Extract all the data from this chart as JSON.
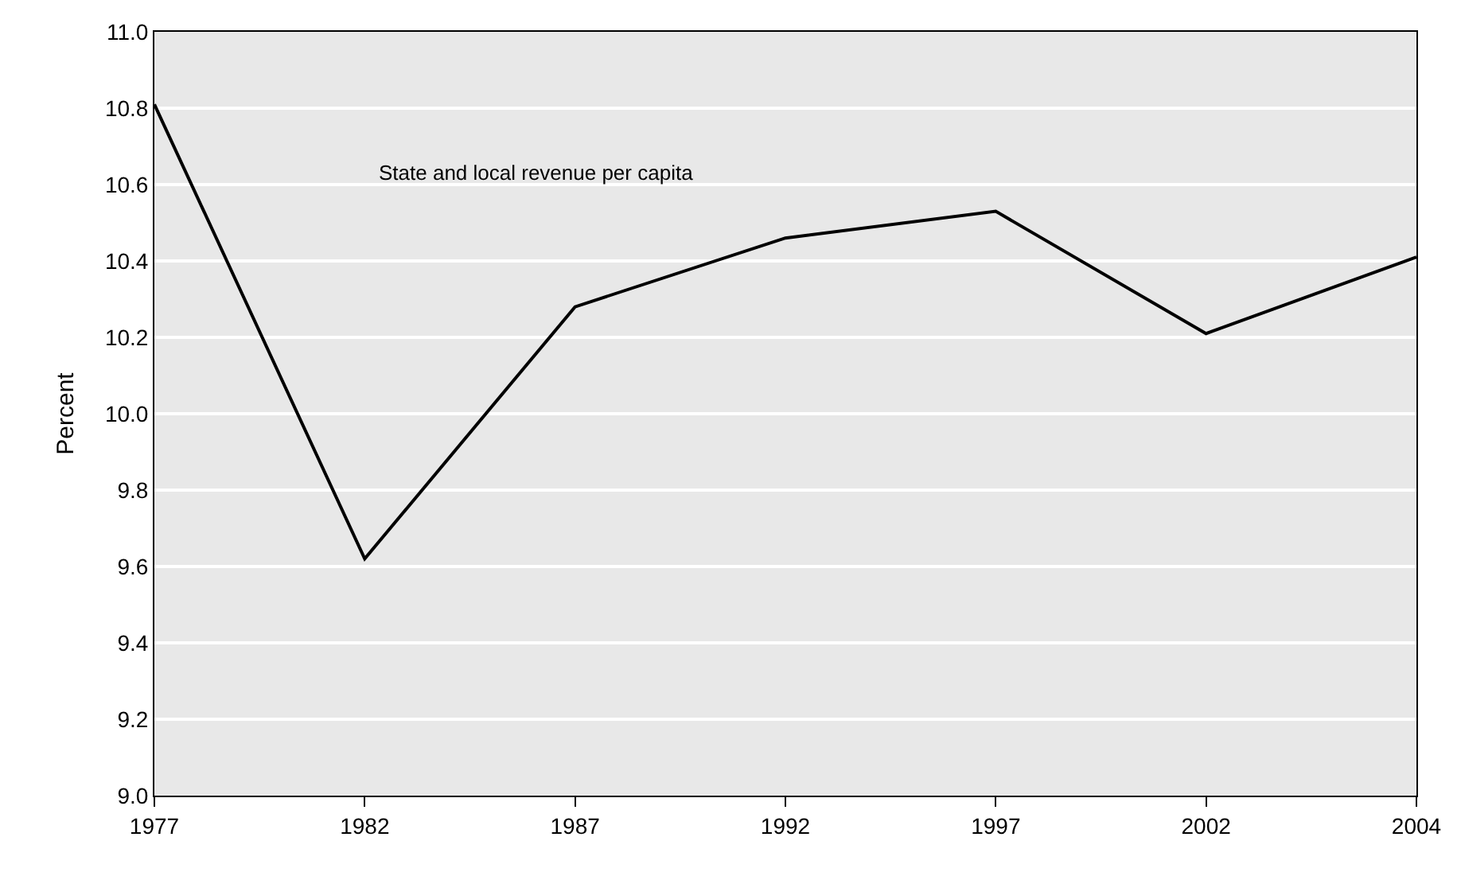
{
  "chart_data": {
    "type": "line",
    "ylabel": "Percent",
    "categories": [
      "1977",
      "1982",
      "1987",
      "1992",
      "1997",
      "2002",
      "2004"
    ],
    "series": [
      {
        "name": "State and local revenue per capita",
        "color": "#000000",
        "values": [
          10.81,
          9.62,
          10.28,
          10.46,
          10.53,
          10.21,
          10.41
        ]
      }
    ],
    "ylim": [
      9.0,
      11.0
    ],
    "yticks": [
      {
        "value": 9.0,
        "label": "9.0"
      },
      9.2,
      9.4,
      9.6,
      9.8,
      {
        "value": 10.0,
        "label": "10.0"
      },
      10.2,
      10.4,
      10.6,
      10.8,
      {
        "value": 11.0,
        "label": "11.0"
      }
    ],
    "grid": "y",
    "legend": false,
    "marker": "none",
    "line_style": "solid"
  }
}
